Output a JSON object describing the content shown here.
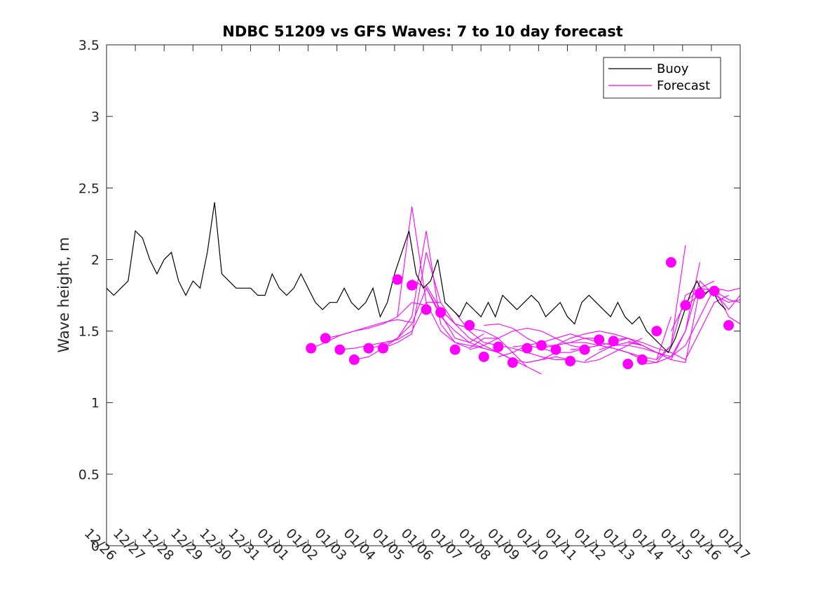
{
  "chart_data": {
    "type": "line",
    "title": "NDBC 51209 vs GFS Waves: 7 to 10 day forecast",
    "xlabel": "",
    "ylabel": "Wave height, m",
    "xlim": [
      0,
      22
    ],
    "ylim": [
      0,
      3.5
    ],
    "x_ticks": [
      "12/26",
      "12/27",
      "12/28",
      "12/29",
      "12/30",
      "12/31",
      "01/01",
      "01/02",
      "01/03",
      "01/04",
      "01/05",
      "01/06",
      "01/07",
      "01/08",
      "01/09",
      "01/10",
      "01/11",
      "01/12",
      "01/13",
      "01/14",
      "01/15",
      "01/16",
      "01/17"
    ],
    "y_ticks": [
      0,
      0.5,
      1,
      1.5,
      2,
      2.5,
      3,
      3.5
    ],
    "y_tick_labels": [
      "0",
      "0.5",
      "1",
      "1.5",
      "2",
      "2.5",
      "3",
      "3.5"
    ],
    "legend": {
      "position": "top-right",
      "entries": [
        "Buoy",
        "Forecast"
      ]
    },
    "colors": {
      "buoy": "#000000",
      "forecast": "#ff00ff"
    },
    "series": [
      {
        "name": "Buoy",
        "x": [
          0,
          0.25,
          0.5,
          0.75,
          1,
          1.25,
          1.5,
          1.75,
          2,
          2.25,
          2.5,
          2.75,
          3,
          3.25,
          3.5,
          3.75,
          4,
          4.25,
          4.5,
          4.75,
          5,
          5.25,
          5.5,
          5.75,
          6,
          6.25,
          6.5,
          6.75,
          7,
          7.25,
          7.5,
          7.75,
          8,
          8.25,
          8.5,
          8.75,
          9,
          9.25,
          9.5,
          9.75,
          10,
          10.25,
          10.5,
          10.75,
          11,
          11.25,
          11.5,
          11.75,
          12,
          12.25,
          12.5,
          12.75,
          13,
          13.25,
          13.5,
          13.75,
          14,
          14.25,
          14.5,
          14.75,
          15,
          15.25,
          15.5,
          15.75,
          16,
          16.25,
          16.5,
          16.75,
          17,
          17.25,
          17.5,
          17.75,
          18,
          18.25,
          18.5,
          18.75,
          19,
          19.25,
          19.5,
          19.75,
          20,
          20.25,
          20.5,
          20.75,
          21,
          21.25,
          21.5
        ],
        "values": [
          1.8,
          1.75,
          1.8,
          1.85,
          2.2,
          2.15,
          2.0,
          1.9,
          2.0,
          2.05,
          1.85,
          1.75,
          1.85,
          1.8,
          2.05,
          2.4,
          1.9,
          1.85,
          1.8,
          1.8,
          1.8,
          1.75,
          1.75,
          1.9,
          1.8,
          1.75,
          1.8,
          1.9,
          1.8,
          1.7,
          1.65,
          1.7,
          1.7,
          1.8,
          1.7,
          1.65,
          1.7,
          1.8,
          1.6,
          1.7,
          1.9,
          2.05,
          2.2,
          1.9,
          1.8,
          1.85,
          2.0,
          1.7,
          1.65,
          1.6,
          1.7,
          1.65,
          1.6,
          1.7,
          1.6,
          1.75,
          1.7,
          1.65,
          1.7,
          1.75,
          1.7,
          1.6,
          1.65,
          1.7,
          1.6,
          1.55,
          1.7,
          1.75,
          1.7,
          1.65,
          1.6,
          1.7,
          1.6,
          1.55,
          1.6,
          1.5,
          1.45,
          1.4,
          1.35,
          1.45,
          1.6,
          1.75,
          1.85,
          1.75,
          1.8,
          1.7,
          1.65
        ]
      },
      {
        "name": "Forecast run 1",
        "x": [
          7.1,
          7.6,
          8.1,
          8.6,
          9.1,
          9.6,
          10.1,
          10.6
        ],
        "values": [
          1.38,
          1.42,
          1.47,
          1.5,
          1.53,
          1.56,
          1.58,
          1.56
        ]
      },
      {
        "name": "Forecast run 2",
        "x": [
          7.6,
          8.1,
          8.6,
          9.1,
          9.6,
          10.1,
          10.6,
          11.1
        ],
        "values": [
          1.45,
          1.47,
          1.5,
          1.52,
          1.55,
          1.6,
          1.7,
          1.68
        ]
      },
      {
        "name": "Forecast run 3",
        "x": [
          8.1,
          8.6,
          9.1,
          9.6,
          10.1,
          10.6,
          11.1,
          11.6
        ],
        "values": [
          1.37,
          1.38,
          1.4,
          1.42,
          1.44,
          1.5,
          1.7,
          1.7
        ]
      },
      {
        "name": "Forecast run 4",
        "x": [
          8.6,
          9.1,
          9.6,
          10.1,
          10.6,
          11.1,
          11.6,
          12.1,
          12.6
        ],
        "values": [
          1.3,
          1.32,
          1.38,
          1.42,
          1.48,
          2.05,
          1.7,
          1.55,
          1.52
        ]
      },
      {
        "name": "Forecast run 5",
        "x": [
          9.1,
          9.6,
          10.1,
          10.6,
          11.1,
          11.6,
          12.1,
          12.6,
          13.1
        ],
        "values": [
          1.38,
          1.4,
          1.45,
          1.55,
          1.8,
          1.62,
          1.45,
          1.42,
          1.48
        ]
      },
      {
        "name": "Forecast run 6",
        "x": [
          9.6,
          10.1,
          10.6,
          11.1,
          11.6,
          12.1,
          12.6,
          13.1,
          13.6
        ],
        "values": [
          1.38,
          1.45,
          1.6,
          2.2,
          1.55,
          1.42,
          1.38,
          1.45,
          1.45
        ]
      },
      {
        "name": "Forecast run 7",
        "x": [
          10.1,
          10.6,
          11.1,
          11.6,
          12.1,
          12.6,
          13.1,
          13.6,
          14.1
        ],
        "values": [
          1.6,
          2.37,
          1.7,
          1.5,
          1.42,
          1.4,
          1.38,
          1.35,
          1.3
        ]
      },
      {
        "name": "Forecast run 8",
        "x": [
          10.6,
          11.1,
          11.6,
          12.1,
          12.6,
          13.1,
          13.6,
          14.1,
          14.6
        ],
        "values": [
          1.86,
          1.8,
          1.6,
          1.5,
          1.42,
          1.38,
          1.35,
          1.3,
          1.25
        ]
      },
      {
        "name": "Forecast run 9",
        "x": [
          11.1,
          11.6,
          12.1,
          12.6,
          13.1,
          13.6,
          14.1,
          14.6,
          15.1
        ],
        "values": [
          1.82,
          1.65,
          1.55,
          1.52,
          1.5,
          1.45,
          1.35,
          1.25,
          1.2
        ]
      },
      {
        "name": "Forecast run 10",
        "x": [
          11.6,
          12.1,
          12.6,
          13.1,
          13.6,
          14.1,
          14.6,
          15.1,
          15.6
        ],
        "values": [
          1.65,
          1.55,
          1.45,
          1.4,
          1.35,
          1.3,
          1.28,
          1.3,
          1.35
        ]
      },
      {
        "name": "Forecast run 11",
        "x": [
          12.1,
          12.6,
          13.1,
          13.6,
          14.1,
          14.6,
          15.1,
          15.6,
          16.1
        ],
        "values": [
          1.63,
          1.5,
          1.42,
          1.4,
          1.38,
          1.35,
          1.32,
          1.3,
          1.3
        ]
      },
      {
        "name": "Forecast run 12",
        "x": [
          12.6,
          13.1,
          13.6,
          14.1,
          14.6,
          15.1,
          15.6,
          16.1,
          16.6
        ],
        "values": [
          1.37,
          1.4,
          1.45,
          1.5,
          1.52,
          1.5,
          1.45,
          1.4,
          1.38
        ]
      },
      {
        "name": "Forecast run 13",
        "x": [
          13.1,
          13.6,
          14.1,
          14.6,
          15.1,
          15.6,
          16.1,
          16.6,
          17.1
        ],
        "values": [
          1.54,
          1.55,
          1.52,
          1.45,
          1.4,
          1.4,
          1.42,
          1.45,
          1.45
        ]
      },
      {
        "name": "Forecast run 14",
        "x": [
          13.6,
          14.1,
          14.6,
          15.1,
          15.6,
          16.1,
          16.6,
          17.1,
          17.6
        ],
        "values": [
          1.32,
          1.35,
          1.4,
          1.42,
          1.45,
          1.48,
          1.45,
          1.42,
          1.4
        ]
      },
      {
        "name": "Forecast run 15",
        "x": [
          14.1,
          14.6,
          15.1,
          15.6,
          16.1,
          16.6,
          17.1,
          17.6,
          18.1
        ],
        "values": [
          1.39,
          1.4,
          1.38,
          1.35,
          1.35,
          1.38,
          1.4,
          1.42,
          1.45
        ]
      },
      {
        "name": "Forecast run 16",
        "x": [
          14.6,
          15.1,
          15.6,
          16.1,
          16.6,
          17.1,
          17.6,
          18.1,
          18.6
        ],
        "values": [
          1.28,
          1.3,
          1.32,
          1.3,
          1.28,
          1.3,
          1.35,
          1.4,
          1.45
        ]
      },
      {
        "name": "Forecast run 17",
        "x": [
          15.1,
          15.6,
          16.1,
          16.6,
          17.1,
          17.6,
          18.1,
          18.6,
          19.1
        ],
        "values": [
          1.38,
          1.4,
          1.45,
          1.48,
          1.5,
          1.48,
          1.45,
          1.4,
          1.35
        ]
      },
      {
        "name": "Forecast run 18",
        "x": [
          15.6,
          16.1,
          16.6,
          17.1,
          17.6,
          18.1,
          18.6,
          19.1,
          19.6
        ],
        "values": [
          1.4,
          1.42,
          1.42,
          1.4,
          1.38,
          1.35,
          1.32,
          1.3,
          1.6
        ]
      },
      {
        "name": "Forecast run 19",
        "x": [
          16.1,
          16.6,
          17.1,
          17.6,
          18.1,
          18.6,
          19.1,
          19.6,
          20.1
        ],
        "values": [
          1.37,
          1.38,
          1.4,
          1.38,
          1.35,
          1.3,
          1.28,
          1.4,
          2.1
        ]
      },
      {
        "name": "Forecast run 20",
        "x": [
          16.6,
          17.1,
          17.6,
          18.1,
          18.6,
          19.1,
          19.6,
          20.1,
          20.6
        ],
        "values": [
          1.29,
          1.35,
          1.4,
          1.4,
          1.38,
          1.35,
          1.3,
          1.5,
          1.98
        ]
      },
      {
        "name": "Forecast run 21",
        "x": [
          17.1,
          17.6,
          18.1,
          18.6,
          19.1,
          19.6,
          20.1,
          20.6,
          21.1
        ],
        "values": [
          1.37,
          1.4,
          1.42,
          1.4,
          1.35,
          1.3,
          1.28,
          1.8,
          1.85
        ]
      },
      {
        "name": "Forecast run 22",
        "x": [
          17.6,
          18.1,
          18.6,
          19.1,
          19.6,
          20.1,
          20.6,
          21.1,
          21.6
        ],
        "values": [
          1.44,
          1.45,
          1.42,
          1.38,
          1.35,
          1.3,
          1.5,
          1.7,
          1.75
        ]
      },
      {
        "name": "Forecast run 23",
        "x": [
          18.1,
          18.6,
          19.1,
          19.6,
          20.1,
          20.6,
          21.1,
          21.6,
          22.0
        ],
        "values": [
          1.43,
          1.4,
          1.35,
          1.32,
          1.4,
          1.6,
          1.8,
          1.78,
          1.8
        ]
      },
      {
        "name": "Forecast run 24",
        "x": [
          18.6,
          19.1,
          19.6,
          20.1,
          20.6,
          21.1,
          21.6,
          22.0
        ],
        "values": [
          1.27,
          1.28,
          1.32,
          1.5,
          1.85,
          1.75,
          1.7,
          1.72
        ]
      },
      {
        "name": "Forecast run 25",
        "x": [
          19.1,
          19.6,
          20.1,
          20.6,
          21.1,
          21.6,
          22.0
        ],
        "values": [
          1.3,
          1.4,
          1.75,
          1.8,
          1.78,
          1.65,
          1.75
        ]
      },
      {
        "name": "Forecast run 26",
        "x": [
          19.6,
          20.1,
          20.6,
          21.1,
          21.6,
          22.0
        ],
        "values": [
          1.5,
          1.7,
          1.8,
          1.78,
          1.72,
          1.7
        ]
      },
      {
        "name": "Forecast run 27",
        "x": [
          20.1,
          20.6,
          21.1,
          21.6,
          22.0
        ],
        "values": [
          1.68,
          1.75,
          1.8,
          1.6,
          1.55
        ]
      }
    ],
    "forecast_markers": {
      "x": [
        7.1,
        7.6,
        8.1,
        8.6,
        9.1,
        9.6,
        10.1,
        10.6,
        11.1,
        11.6,
        12.1,
        12.6,
        13.1,
        13.6,
        14.1,
        14.6,
        15.1,
        15.6,
        16.1,
        16.6,
        17.1,
        17.6,
        18.1,
        18.6,
        19.1,
        19.6,
        20.1,
        20.6,
        21.1,
        21.6
      ],
      "values": [
        1.38,
        1.45,
        1.37,
        1.3,
        1.38,
        1.38,
        1.86,
        1.82,
        1.65,
        1.63,
        1.37,
        1.54,
        1.32,
        1.39,
        1.28,
        1.38,
        1.4,
        1.37,
        1.29,
        1.37,
        1.44,
        1.43,
        1.27,
        1.3,
        1.5,
        1.98,
        1.68,
        1.76,
        1.78,
        1.54
      ]
    }
  }
}
